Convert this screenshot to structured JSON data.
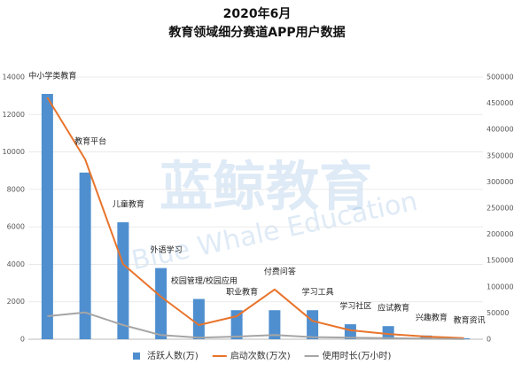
{
  "chart_data": {
    "type": "bar_line",
    "title": [
      "2020年6月",
      "教育领域细分赛道APP用户数据"
    ],
    "watermark": [
      "蓝鲸教育",
      "Blue Whale Education"
    ],
    "categories": [
      "中小学类教育",
      "教育平台",
      "儿童教育",
      "外语学习",
      "校园管理/校园应用",
      "职业教育",
      "付费问答",
      "学习工具",
      "学习社区",
      "应试教育",
      "兴趣教育",
      "教育资讯"
    ],
    "series": [
      {
        "name": "活跃人数(万)",
        "type": "bar",
        "color": "#4f8fcf",
        "values": [
          13100,
          8900,
          6250,
          3800,
          2150,
          1550,
          1550,
          1550,
          800,
          700,
          200,
          50
        ]
      },
      {
        "name": "启动次数(万次)",
        "type": "line",
        "axis": "y2",
        "color": "#e8742c",
        "values": [
          461000,
          343000,
          143000,
          81000,
          27000,
          44000,
          95000,
          35000,
          17000,
          10000,
          5000,
          2000
        ]
      },
      {
        "name": "使用时长(万小时)",
        "type": "line",
        "axis": "y2",
        "color": "#a5a5a5",
        "values": [
          44000,
          51000,
          27000,
          8000,
          3000,
          5000,
          8000,
          4000,
          3000,
          2000,
          1000,
          500
        ]
      }
    ],
    "ylim": [
      0,
      14000
    ],
    "yticks": [
      0,
      2000,
      4000,
      6000,
      8000,
      10000,
      12000,
      14000
    ],
    "y2lim": [
      0,
      500000
    ],
    "y2ticks": [
      0,
      50000,
      100000,
      150000,
      200000,
      250000,
      300000,
      350000,
      400000,
      450000,
      500000
    ],
    "grid": true
  }
}
